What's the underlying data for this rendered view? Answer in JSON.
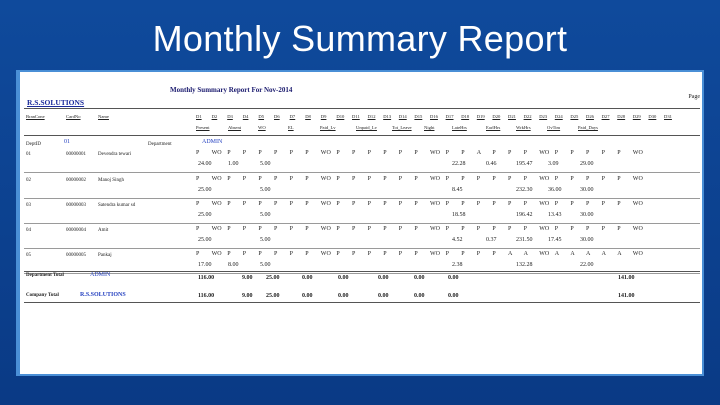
{
  "slide_title": "Monthly Summary Report",
  "report": {
    "title": "Monthly Summary Report For Nov-2014",
    "page_label": "Page",
    "company": "R.S.SOLUTIONS",
    "headers_row1": [
      "BranCone",
      "CardNo",
      "Name",
      "D1",
      "D2",
      "D3",
      "D4",
      "D5",
      "D6",
      "D7",
      "D8",
      "D9",
      "D10",
      "D11",
      "D12",
      "D13",
      "D14",
      "D15",
      "D16",
      "D17",
      "D18",
      "D19",
      "D20",
      "D21",
      "D22",
      "D23",
      "D24",
      "D25",
      "D26",
      "D27",
      "D28",
      "D29",
      "D30",
      "D31"
    ],
    "headers_row2": [
      "Present",
      "Absent",
      "WO",
      "EL",
      "Paid_Lv",
      "Unpaid_Lv",
      "Tot_Leave",
      "Night",
      "LateHrs",
      "EarlHrs",
      "WrkHrs",
      "OvTim",
      "Paid_Days"
    ],
    "dept_line": {
      "label": "DeptID",
      "id": "01",
      "dept_label": "Department",
      "dept_name": "ADMIN"
    },
    "rows": [
      {
        "branch": "01",
        "card": "00000001",
        "name": "Devendra tewari",
        "days": [
          "P",
          "WO",
          "P",
          "P",
          "P",
          "P",
          "P",
          "P",
          "WO",
          "P",
          "P",
          "P",
          "P",
          "P",
          "P",
          "WO",
          "P",
          "P",
          "A",
          "P",
          "P",
          "P",
          "WO",
          "P",
          "P",
          "P",
          "P",
          "P",
          "WO"
        ],
        "t1": "24.00",
        "t2": "1.00",
        "t3": "5.00",
        "late": "22.28",
        "early": "0.46",
        "wrk": "195.47",
        "ot": "3.09",
        "paid": "29.00"
      },
      {
        "branch": "02",
        "card": "00000002",
        "name": "Manoj Singh",
        "days": [
          "P",
          "WO",
          "P",
          "P",
          "P",
          "P",
          "P",
          "P",
          "WO",
          "P",
          "P",
          "P",
          "P",
          "P",
          "P",
          "WO",
          "P",
          "P",
          "P",
          "P",
          "P",
          "P",
          "WO",
          "P",
          "P",
          "P",
          "P",
          "P",
          "WO"
        ],
        "t1": "25.00",
        "t2": "",
        "t3": "5.00",
        "late": "8.45",
        "early": "",
        "wrk": "232.30",
        "ot": "36.00",
        "paid": "30.00"
      },
      {
        "branch": "03",
        "card": "00000003",
        "name": "Satendra kumar sd",
        "days": [
          "P",
          "WO",
          "P",
          "P",
          "P",
          "P",
          "P",
          "P",
          "WO",
          "P",
          "P",
          "P",
          "P",
          "P",
          "P",
          "WO",
          "P",
          "P",
          "P",
          "P",
          "P",
          "P",
          "WO",
          "P",
          "P",
          "P",
          "P",
          "P",
          "WO"
        ],
        "t1": "25.00",
        "t2": "",
        "t3": "5.00",
        "late": "18.58",
        "early": "",
        "wrk": "196.42",
        "ot": "13.43",
        "paid": "30.00"
      },
      {
        "branch": "04",
        "card": "00000004",
        "name": "Amit",
        "days": [
          "P",
          "WO",
          "P",
          "P",
          "P",
          "P",
          "P",
          "P",
          "WO",
          "P",
          "P",
          "P",
          "P",
          "P",
          "P",
          "WO",
          "P",
          "P",
          "P",
          "P",
          "P",
          "P",
          "WO",
          "P",
          "P",
          "P",
          "P",
          "P",
          "WO"
        ],
        "t1": "25.00",
        "t2": "",
        "t3": "5.00",
        "late": "4.52",
        "early": "0.37",
        "wrk": "231.50",
        "ot": "17.45",
        "paid": "30.00"
      },
      {
        "branch": "05",
        "card": "00000005",
        "name": "Pankaj",
        "days": [
          "P",
          "WO",
          "P",
          "P",
          "P",
          "P",
          "P",
          "P",
          "WO",
          "P",
          "P",
          "P",
          "P",
          "P",
          "P",
          "WO",
          "P",
          "P",
          "P",
          "P",
          "A",
          "A",
          "WO",
          "A",
          "A",
          "A",
          "A",
          "A",
          "WO"
        ],
        "t1": "17.00",
        "t2": "8.00",
        "t3": "5.00",
        "late": "2.38",
        "early": "",
        "wrk": "132.28",
        "ot": "",
        "paid": "22.00"
      }
    ],
    "dept_total": {
      "label": "Department Total",
      "name": "ADMIN",
      "values": [
        "116.00",
        "9.00",
        "25.00",
        "0.00",
        "0.00",
        "0.00",
        "0.00",
        "0.00"
      ],
      "paid": "141.00"
    },
    "company_total": {
      "label": "Company Total",
      "name": "R.S.SOLUTIONS",
      "values": [
        "116.00",
        "9.00",
        "25.00",
        "0.00",
        "0.00",
        "0.00",
        "0.00",
        "0.00"
      ],
      "paid": "141.00"
    }
  }
}
